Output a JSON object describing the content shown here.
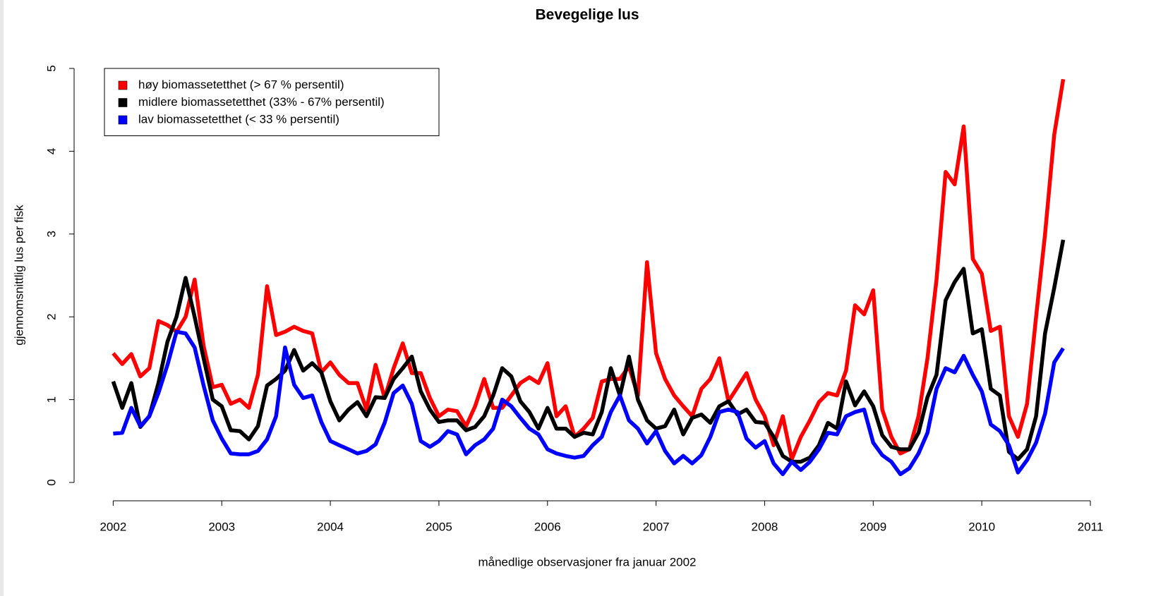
{
  "chart_data": {
    "type": "line",
    "title": "Bevegelige lus",
    "x_label": "månedlige observasjoner fra januar 2002",
    "y_label": "gjennomsnittlig lus per fisk",
    "xlim": [
      2001.64,
      2011
    ],
    "ylim": [
      0,
      5
    ],
    "xticks": [
      2002,
      2003,
      2004,
      2005,
      2006,
      2007,
      2008,
      2009,
      2010,
      2011
    ],
    "yticks": [
      0,
      1,
      2,
      3,
      4,
      5
    ],
    "legend_position": "top-left",
    "x": [
      2002,
      2002.083,
      2002.167,
      2002.25,
      2002.333,
      2002.417,
      2002.5,
      2002.583,
      2002.667,
      2002.75,
      2002.833,
      2002.917,
      2003,
      2003.083,
      2003.167,
      2003.25,
      2003.333,
      2003.417,
      2003.5,
      2003.583,
      2003.667,
      2003.75,
      2003.833,
      2003.917,
      2004,
      2004.083,
      2004.167,
      2004.25,
      2004.333,
      2004.417,
      2004.5,
      2004.583,
      2004.667,
      2004.75,
      2004.833,
      2004.917,
      2005,
      2005.083,
      2005.167,
      2005.25,
      2005.333,
      2005.417,
      2005.5,
      2005.583,
      2005.667,
      2005.75,
      2005.833,
      2005.917,
      2006,
      2006.083,
      2006.167,
      2006.25,
      2006.333,
      2006.417,
      2006.5,
      2006.583,
      2006.667,
      2006.75,
      2006.833,
      2006.917,
      2007,
      2007.083,
      2007.167,
      2007.25,
      2007.333,
      2007.417,
      2007.5,
      2007.583,
      2007.667,
      2007.75,
      2007.833,
      2007.917,
      2008,
      2008.083,
      2008.167,
      2008.25,
      2008.333,
      2008.417,
      2008.5,
      2008.583,
      2008.667,
      2008.75,
      2008.833,
      2008.917,
      2009,
      2009.083,
      2009.167,
      2009.25,
      2009.333,
      2009.417,
      2009.5,
      2009.583,
      2009.667,
      2009.75,
      2009.833,
      2009.917,
      2010,
      2010.083,
      2010.167,
      2010.25,
      2010.333,
      2010.417,
      2010.5,
      2010.583,
      2010.667,
      2010.75
    ],
    "series": [
      {
        "name": "høy biomassetetthet (> 67 % persentil)",
        "color": "#ff0000",
        "values": [
          1.56,
          1.43,
          1.55,
          1.28,
          1.38,
          1.95,
          1.9,
          1.82,
          2.0,
          2.45,
          1.65,
          1.15,
          1.18,
          0.95,
          1.0,
          0.9,
          1.3,
          2.37,
          1.78,
          1.82,
          1.88,
          1.83,
          1.8,
          1.33,
          1.45,
          1.3,
          1.2,
          1.2,
          0.88,
          1.42,
          1.02,
          1.38,
          1.68,
          1.32,
          1.32,
          1.02,
          0.8,
          0.88,
          0.86,
          0.68,
          0.92,
          1.25,
          0.9,
          0.9,
          1.05,
          1.2,
          1.27,
          1.2,
          1.44,
          0.8,
          0.92,
          0.55,
          0.65,
          0.78,
          1.22,
          1.25,
          1.25,
          1.4,
          1.05,
          2.66,
          1.56,
          1.25,
          1.05,
          0.92,
          0.8,
          1.13,
          1.25,
          1.5,
          0.98,
          1.15,
          1.32,
          1.0,
          0.8,
          0.45,
          0.8,
          0.28,
          0.55,
          0.75,
          0.97,
          1.08,
          1.05,
          1.35,
          2.14,
          2.03,
          2.32,
          0.88,
          0.55,
          0.35,
          0.4,
          0.8,
          1.5,
          2.45,
          3.75,
          3.6,
          4.3,
          2.7,
          2.52,
          1.83,
          1.88,
          0.8,
          0.55,
          0.95,
          2.0,
          3.0,
          4.2,
          4.87
        ]
      },
      {
        "name": "midlere biomassetetthet (33% - 67% persentil)",
        "color": "#000000",
        "values": [
          1.22,
          0.9,
          1.2,
          0.67,
          0.8,
          1.2,
          1.7,
          2.0,
          2.47,
          2.0,
          1.5,
          1.0,
          0.92,
          0.63,
          0.62,
          0.52,
          0.68,
          1.17,
          1.25,
          1.35,
          1.6,
          1.35,
          1.44,
          1.33,
          0.98,
          0.75,
          0.88,
          0.97,
          0.8,
          1.03,
          1.02,
          1.25,
          1.38,
          1.52,
          1.1,
          0.88,
          0.73,
          0.75,
          0.75,
          0.63,
          0.67,
          0.8,
          1.05,
          1.38,
          1.28,
          0.98,
          0.85,
          0.65,
          0.9,
          0.65,
          0.65,
          0.55,
          0.6,
          0.58,
          0.85,
          1.38,
          1.05,
          1.52,
          1.0,
          0.75,
          0.65,
          0.68,
          0.88,
          0.58,
          0.78,
          0.82,
          0.72,
          0.92,
          0.98,
          0.82,
          0.88,
          0.73,
          0.72,
          0.55,
          0.32,
          0.25,
          0.25,
          0.3,
          0.45,
          0.72,
          0.65,
          1.22,
          0.93,
          1.1,
          0.92,
          0.57,
          0.43,
          0.4,
          0.4,
          0.6,
          1.03,
          1.3,
          2.2,
          2.42,
          2.58,
          1.8,
          1.85,
          1.13,
          1.05,
          0.37,
          0.28,
          0.4,
          0.8,
          1.8,
          2.35,
          2.93
        ]
      },
      {
        "name": "lav biomassetetthet (< 33 % persentil)",
        "color": "#0000ff",
        "values": [
          0.59,
          0.6,
          0.9,
          0.68,
          0.8,
          1.08,
          1.42,
          1.82,
          1.8,
          1.63,
          1.17,
          0.75,
          0.53,
          0.35,
          0.34,
          0.34,
          0.38,
          0.52,
          0.8,
          1.63,
          1.18,
          1.02,
          1.05,
          0.73,
          0.5,
          0.45,
          0.4,
          0.35,
          0.38,
          0.46,
          0.72,
          1.08,
          1.17,
          0.95,
          0.5,
          0.43,
          0.5,
          0.62,
          0.58,
          0.34,
          0.45,
          0.52,
          0.65,
          1.0,
          0.92,
          0.78,
          0.65,
          0.58,
          0.4,
          0.35,
          0.32,
          0.3,
          0.32,
          0.45,
          0.55,
          0.85,
          1.05,
          0.75,
          0.65,
          0.47,
          0.62,
          0.38,
          0.23,
          0.32,
          0.23,
          0.33,
          0.55,
          0.85,
          0.88,
          0.85,
          0.53,
          0.42,
          0.5,
          0.23,
          0.1,
          0.25,
          0.15,
          0.25,
          0.4,
          0.6,
          0.58,
          0.8,
          0.85,
          0.88,
          0.48,
          0.33,
          0.25,
          0.1,
          0.17,
          0.35,
          0.6,
          1.13,
          1.38,
          1.33,
          1.53,
          1.3,
          1.1,
          0.7,
          0.62,
          0.45,
          0.12,
          0.27,
          0.48,
          0.83,
          1.45,
          1.62
        ]
      }
    ]
  }
}
